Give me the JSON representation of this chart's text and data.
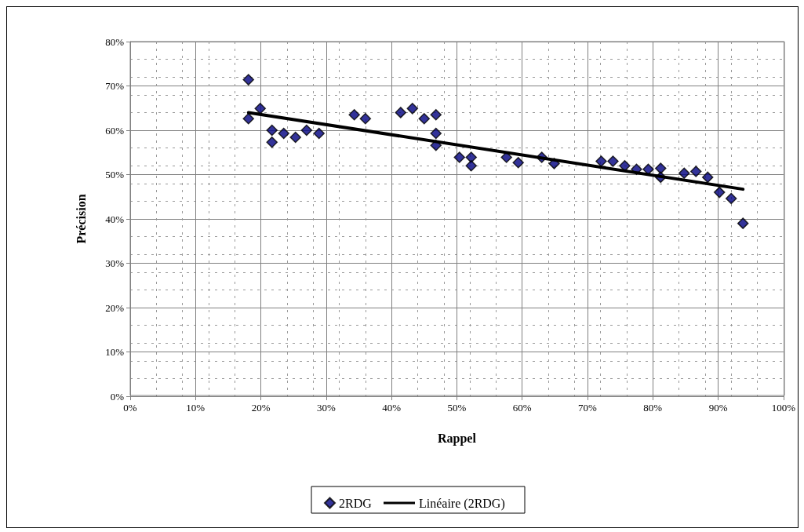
{
  "chart_data": {
    "type": "scatter",
    "xlabel": "Rappel",
    "ylabel": "Précision",
    "xlim": [
      0,
      100
    ],
    "xticks": [
      {
        "value": 0,
        "label": "0%"
      },
      {
        "value": 10,
        "label": "10%"
      },
      {
        "value": 20,
        "label": "20%"
      },
      {
        "value": 30,
        "label": "30%"
      },
      {
        "value": 40,
        "label": "40%"
      },
      {
        "value": 50,
        "label": "50%"
      },
      {
        "value": 60,
        "label": "60%"
      },
      {
        "value": 70,
        "label": "70%"
      },
      {
        "value": 80,
        "label": "80%"
      },
      {
        "value": 90,
        "label": "90%"
      },
      {
        "value": 100,
        "label": "100%"
      }
    ],
    "ylim": [
      0,
      80
    ],
    "yticks": [
      {
        "value": 0,
        "label": "0%"
      },
      {
        "value": 10,
        "label": "10%"
      },
      {
        "value": 20,
        "label": "20%"
      },
      {
        "value": 30,
        "label": "30%"
      },
      {
        "value": 40,
        "label": "40%"
      },
      {
        "value": 50,
        "label": "50%"
      },
      {
        "value": 60,
        "label": "60%"
      },
      {
        "value": 70,
        "label": "70%"
      },
      {
        "value": 80,
        "label": "80%"
      }
    ],
    "grid": true,
    "legend": "bottom",
    "marker": "diamond",
    "series": [
      {
        "name": "2RDG",
        "color": "#000080",
        "x": [
          18.1,
          18.1,
          19.9,
          21.7,
          21.7,
          23.5,
          25.3,
          27.0,
          28.9,
          34.3,
          36.0,
          41.4,
          43.2,
          45.0,
          46.8,
          46.8,
          46.8,
          50.4,
          52.2,
          52.2,
          57.6,
          59.4,
          63.0,
          64.9,
          72.1,
          73.9,
          75.7,
          77.5,
          79.3,
          81.2,
          81.2,
          84.8,
          86.6,
          88.4,
          90.2,
          92.0,
          93.8
        ],
        "values": [
          71.4,
          62.6,
          64.9,
          60.0,
          57.3,
          59.3,
          58.4,
          60.0,
          59.3,
          63.5,
          62.6,
          64.0,
          64.9,
          62.6,
          63.5,
          59.3,
          56.6,
          53.9,
          53.9,
          52.0,
          53.9,
          52.7,
          53.9,
          52.5,
          53.0,
          53.0,
          52.0,
          51.2,
          51.2,
          51.4,
          49.4,
          50.3,
          50.7,
          49.4,
          46.0,
          44.6,
          39.0
        ]
      },
      {
        "name": "Linéaire (2RDG)",
        "type": "line",
        "color": "#000000",
        "x": [
          18.1,
          93.8
        ],
        "values": [
          64.0,
          46.7
        ],
        "marker": "none",
        "line_style": "solid"
      }
    ]
  }
}
